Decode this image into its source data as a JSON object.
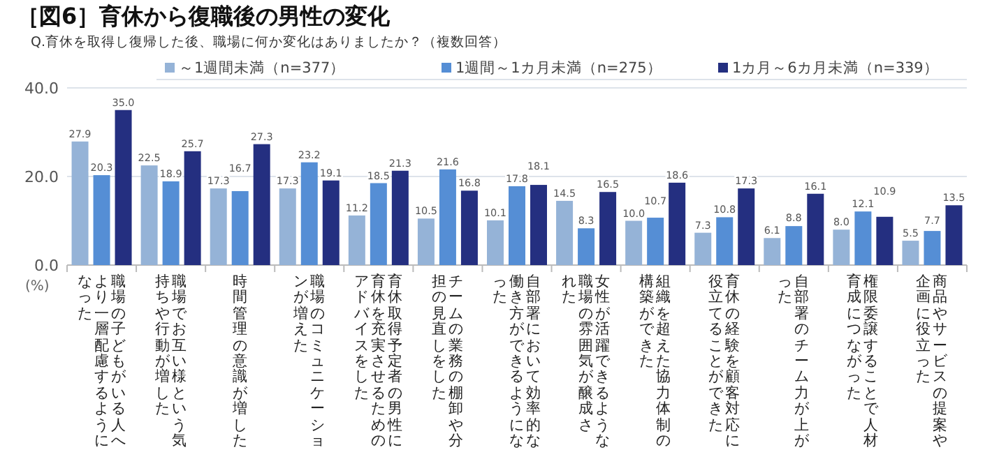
{
  "chart_data": {
    "type": "bar",
    "title": "［図6］育休から復職後の男性の変化",
    "subtitle": "Q.育休を取得し復帰した後、職場に何か変化はありましたか？（複数回答）",
    "categories": [
      "職場の子どもがいる人へより一層配慮するようになった",
      "職場でお互い様という気持ちや行動が増した",
      "時間管理の意識が増した",
      "職場のコミュニケーションが増えた",
      "育休取得予定者の男性に育休を充実させるためのアドバイスをした",
      "チームの業務の棚卸や分担の見直しをした",
      "自部署において効率的な働き方ができるようになった",
      "女性が活躍できるような職場の雰囲気が醸成された",
      "組織を超えた協力体制の構築ができた",
      "育休の経験を顧客対応に役立てることができた",
      "自部署のチーム力が上がった",
      "権限委譲することで人材育成につながった",
      "商品やサービスの提案や企画に役立った"
    ],
    "series": [
      {
        "name": "～1週間未満（n=377）",
        "color": "#95b3d7",
        "values": [
          27.9,
          22.5,
          17.3,
          17.3,
          11.2,
          10.5,
          10.1,
          14.5,
          10.0,
          7.3,
          6.1,
          8.0,
          5.5
        ],
        "value_labels": [
          "27.9",
          "22.5",
          "17.3",
          "17.3",
          "11.2",
          "10.5",
          "10.1",
          "14.5",
          "10.0",
          "7.3",
          "6.1",
          "8.0",
          "5.5"
        ]
      },
      {
        "name": "1週間～1カ月未満（n=275）",
        "color": "#558ed5",
        "values": [
          20.3,
          18.9,
          16.7,
          23.2,
          18.5,
          21.6,
          17.8,
          8.3,
          10.7,
          10.8,
          8.8,
          12.1,
          7.7
        ],
        "value_labels": [
          "20.3",
          "18.9",
          "16.7",
          "23.2",
          "18.5",
          "21.6",
          "17.8",
          "8.3",
          "10.7",
          "10.8",
          "8.8",
          "12.1",
          "7.7"
        ]
      },
      {
        "name": "1カ月～6カ月未満（n=339）",
        "color": "#242f80",
        "values": [
          35.0,
          25.7,
          27.3,
          19.1,
          21.3,
          16.8,
          18.1,
          16.5,
          18.6,
          17.3,
          16.1,
          10.9,
          13.5
        ],
        "value_labels": [
          "35.0",
          "25.7",
          "27.3",
          "19.1",
          "21.3",
          "16.8",
          "18.1",
          "16.5",
          "18.6",
          "17.3",
          "16.1",
          "10.9",
          "13.5"
        ]
      }
    ],
    "ylim": [
      0,
      40
    ],
    "yticks": [
      {
        "value": 0,
        "label": "0.0"
      },
      {
        "value": 20,
        "label": "20.0"
      },
      {
        "value": 40,
        "label": "40.0"
      }
    ],
    "grid": "y",
    "legend": "top",
    "annotations": [
      "(%)"
    ]
  }
}
